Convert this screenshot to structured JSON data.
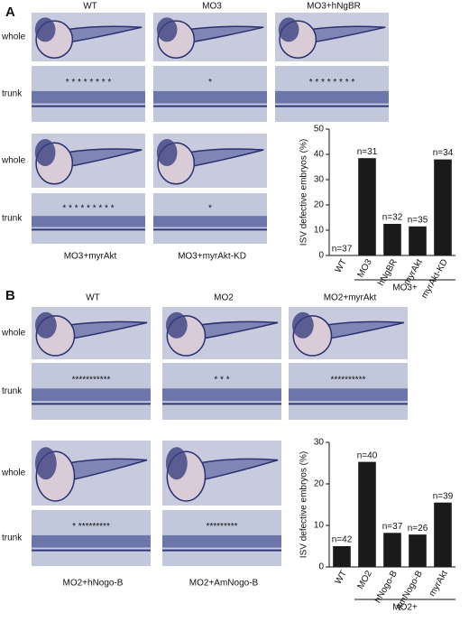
{
  "panels": [
    {
      "label": "A",
      "headers": [
        "WT",
        "MO3",
        "MO3+hNgBR"
      ],
      "row_labels": [
        "whole",
        "trunk",
        "whole",
        "trunk"
      ],
      "footers": [
        "MO3+myrAkt",
        "MO3+myrAkt-KD"
      ],
      "trunk_marks": [
        "* * * * * * * *",
        "*",
        "* * * * * * * *",
        "* * * * * * * * *",
        "*"
      ]
    },
    {
      "label": "B",
      "headers": [
        "WT",
        "MO2",
        "MO2+myrAkt"
      ],
      "row_labels": [
        "whole",
        "trunk",
        "whole",
        "trunk"
      ],
      "footers": [
        "MO2+hNogo-B",
        "MO2+AmNogo-B"
      ],
      "trunk_marks": [
        "***********",
        "* * *",
        "**********",
        "* *********",
        "*********"
      ]
    }
  ],
  "chart_data": [
    {
      "type": "bar",
      "ylabel": "ISV defective embryos (%)",
      "categories": [
        "WT",
        "MO3",
        "hNgBR",
        "myrAkt",
        "myrAkt-KD"
      ],
      "values": [
        0,
        38.5,
        12.5,
        11.5,
        38
      ],
      "bar_labels": [
        "n=37",
        "n=31",
        "n=32",
        "n=35",
        "n=34"
      ],
      "group_label": "MO3+",
      "ylim": [
        0,
        50
      ],
      "yticks": [
        0,
        10,
        20,
        30,
        40,
        50
      ],
      "color": "#1a1a1a"
    },
    {
      "type": "bar",
      "ylabel": "ISV defective embryos (%)",
      "categories": [
        "WT",
        "MO2",
        "hNogo-B",
        "AmNogo-B",
        "myrAkt"
      ],
      "values": [
        5,
        25.3,
        8.2,
        7.8,
        15.5
      ],
      "bar_labels": [
        "n=42",
        "n=40",
        "n=37",
        "n=26",
        "n=39"
      ],
      "group_label": "MO2+",
      "ylim": [
        0,
        30
      ],
      "yticks": [
        0,
        10,
        20,
        30
      ],
      "color": "#1a1a1a"
    }
  ]
}
